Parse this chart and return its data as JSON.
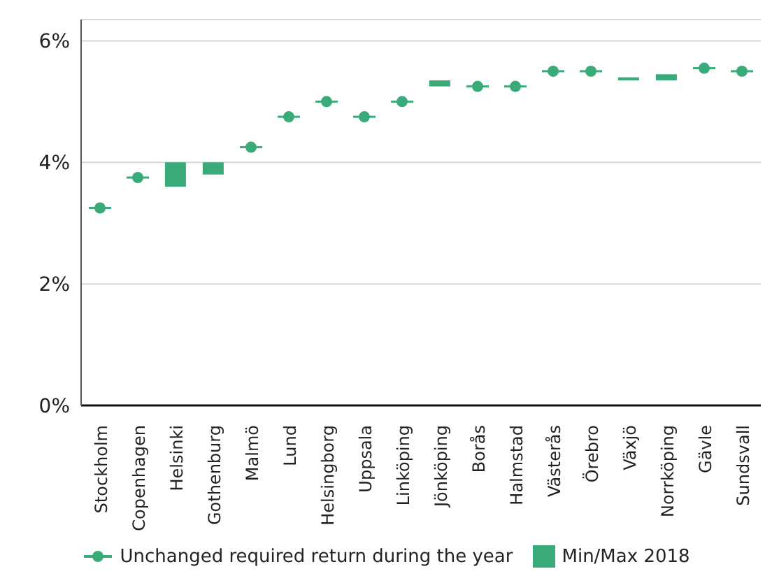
{
  "chart_data": {
    "type": "bar",
    "categories": [
      "Stockholm",
      "Copenhagen",
      "Helsinki",
      "Gothenburg",
      "Malmö",
      "Lund",
      "Helsingborg",
      "Uppsala",
      "Linköping",
      "Jönköping",
      "Borås",
      "Halmstad",
      "Västerås",
      "Örebro",
      "Växjö",
      "Norrköping",
      "Gävle",
      "Sundsvall"
    ],
    "series": [
      {
        "type": "scatter",
        "name": "Unchanged required return during the year",
        "color": "#3aaa78",
        "values": [
          3.25,
          3.75,
          null,
          null,
          4.25,
          4.75,
          5.0,
          4.75,
          5.0,
          null,
          5.25,
          5.25,
          5.5,
          5.5,
          null,
          null,
          5.55,
          5.5
        ]
      },
      {
        "type": "bar",
        "name": "Min/Max 2018",
        "color": "#3aaa78",
        "base": [
          null,
          null,
          3.6,
          3.8,
          null,
          null,
          null,
          null,
          null,
          5.25,
          null,
          null,
          null,
          null,
          5.35,
          5.35,
          null,
          null
        ],
        "values": [
          null,
          null,
          0.4,
          0.2,
          null,
          null,
          null,
          null,
          null,
          0.1,
          null,
          null,
          null,
          null,
          0.05,
          0.1,
          null,
          null
        ]
      }
    ],
    "ylim": [
      0,
      6.35
    ],
    "yticks": [
      {
        "value": 0,
        "label": "0%"
      },
      {
        "value": 2,
        "label": "2%"
      },
      {
        "value": 4,
        "label": "4%"
      },
      {
        "value": 6,
        "label": "6%"
      }
    ],
    "grid": "y",
    "legend": "bottom",
    "marker": "circle"
  }
}
